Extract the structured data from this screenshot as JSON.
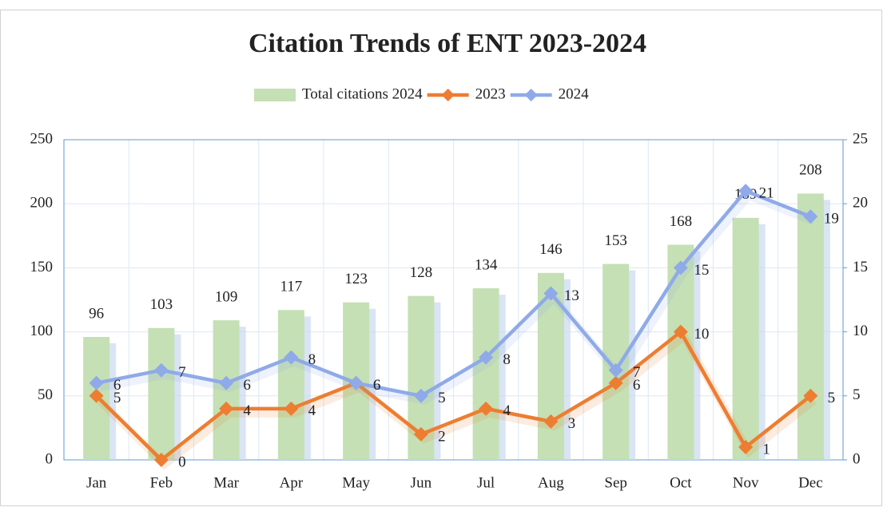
{
  "chart_data": {
    "type": "bar",
    "title": "Citation Trends of ENT 2023-2024",
    "categories": [
      "Jan",
      "Feb",
      "Mar",
      "Apr",
      "May",
      "Jun",
      "Jul",
      "Aug",
      "Sep",
      "Oct",
      "Nov",
      "Dec"
    ],
    "series": [
      {
        "name": "Total citations 2024",
        "type": "bar",
        "color": "#c5e0b4",
        "values": [
          96,
          103,
          109,
          117,
          123,
          128,
          134,
          146,
          153,
          168,
          189,
          208
        ]
      },
      {
        "name": "2023",
        "type": "line",
        "axis": "y2",
        "color": "#ed7d31",
        "values": [
          5,
          0,
          4,
          4,
          6,
          2,
          4,
          3,
          6,
          10,
          1,
          5
        ]
      },
      {
        "name": "2024",
        "type": "line",
        "axis": "y2",
        "color": "#8faae8",
        "values": [
          6,
          7,
          6,
          8,
          6,
          5,
          8,
          13,
          7,
          15,
          21,
          19
        ]
      }
    ],
    "ylim": [
      0,
      250
    ],
    "yticks": [
      0,
      50,
      100,
      150,
      200,
      250
    ],
    "y2lim": [
      0,
      25
    ],
    "y2ticks": [
      0,
      5,
      10,
      15,
      20,
      25
    ],
    "grid": true,
    "legend": "top"
  }
}
